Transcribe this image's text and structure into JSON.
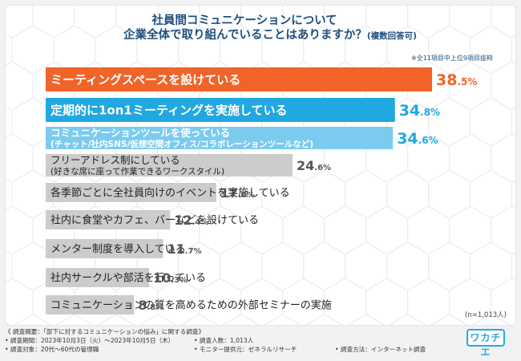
{
  "title_line1": "社員間コミュニケーションについて",
  "title_line2": "企業全体で取り組んでいることはありますか？",
  "title_suffix": "(複数回答可)",
  "note": "※全11項目中上位9項目抜粋",
  "n_label": "(n=1,013人)",
  "footer": {
    "line1": "《 調査概要：「部下に対するコミュニケーションの悩み」に関する調査》",
    "period": "• 調査期間：2023年10月3日（火）〜2023年10月5日（木）",
    "people": "• 調査人数：1,013人",
    "target": "• 調査対象：20代〜60代の管理職",
    "provider": "• モニター提供元：ゼネラルリサーチ",
    "method": "• 調査方法：インターネット調査"
  },
  "logo_text": "ワカチエ",
  "colors": {
    "bar1": "#f0642a",
    "bar2": "#22a8e0",
    "bar3": "#7ccbef",
    "bar_gray": "#cccccc",
    "value_orange": "#f0642a",
    "value_blue": "#22a8e0",
    "value_gray": "#555555"
  },
  "chart_data": {
    "type": "bar",
    "orientation": "horizontal",
    "unit": "%",
    "categories": [
      [
        "ミーティングスペースを設けている"
      ],
      [
        "定期的に1on1ミーティングを実施している"
      ],
      [
        "コミュニケーションツールを使っている",
        "(チャット/社内SNS/仮想空間オフィス/コラボレーションツールなど)"
      ],
      [
        "フリーアドレス制にしている",
        "(好きな席に座って作業できるワークスタイル)"
      ],
      [
        "各季節ごとに全社員向けのイベントを実施している"
      ],
      [
        "社内に食堂やカフェ、バーなどを設けている"
      ],
      [
        "メンター制度を導入している"
      ],
      [
        "社内サークルや部活を行っている"
      ],
      [
        "コミュニケーションの質を高めるための外部セミナーの実施"
      ]
    ],
    "values": [
      38.5,
      34.8,
      34.6,
      24.6,
      17.0,
      12.4,
      11.7,
      10.3,
      8.8
    ],
    "value_labels": [
      [
        "38",
        ".5%"
      ],
      [
        "34",
        ".8%"
      ],
      [
        "34",
        ".6%"
      ],
      [
        "24",
        ".6%"
      ],
      [
        "17",
        ".0%"
      ],
      [
        "12",
        ".4%"
      ],
      [
        "11",
        ".7%"
      ],
      [
        "10",
        ".3%"
      ],
      [
        "8",
        ".8%"
      ]
    ],
    "xlim": [
      0,
      38.5
    ]
  }
}
